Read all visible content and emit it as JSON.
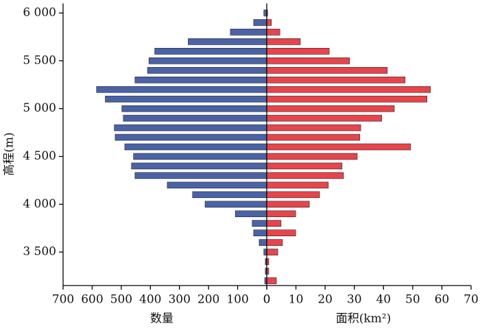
{
  "chart_data": {
    "type": "butterfly",
    "ylabel": "高程(m)",
    "y": [
      6000,
      5900,
      5800,
      5700,
      5600,
      5500,
      5400,
      5300,
      5200,
      5100,
      5000,
      4900,
      4800,
      4700,
      4600,
      4500,
      4400,
      4300,
      4200,
      4100,
      4000,
      3900,
      3800,
      3700,
      3600,
      3500,
      3400,
      3300,
      3200
    ],
    "ylim": [
      3150,
      6100
    ],
    "yticks": [
      {
        "value": 3500,
        "label": "3 500"
      },
      {
        "value": 4000,
        "label": "4 000"
      },
      {
        "value": 4500,
        "label": "4 500"
      },
      {
        "value": 5000,
        "label": "5 000"
      },
      {
        "value": 5500,
        "label": "5 500"
      },
      {
        "value": 6000,
        "label": "6 000"
      }
    ],
    "series": [
      {
        "name": "数量",
        "color": "#4a62a6",
        "values": [
          10,
          45,
          125,
          270,
          385,
          405,
          410,
          453,
          585,
          555,
          498,
          493,
          524,
          521,
          488,
          458,
          465,
          453,
          342,
          255,
          212,
          108,
          50,
          45,
          26,
          10,
          5,
          5,
          7
        ],
        "xlim": [
          0,
          700
        ],
        "xticks": [
          0,
          100,
          200,
          300,
          400,
          500,
          600,
          700
        ]
      },
      {
        "name": "面积(km²)",
        "color": "#e8444b",
        "values": [
          0.3,
          1.6,
          4.5,
          11.5,
          21.4,
          28.4,
          41.3,
          47.4,
          56.1,
          54.9,
          43.7,
          39.4,
          32.2,
          31.9,
          49.3,
          31,
          25.8,
          26.3,
          21.1,
          18.1,
          14.6,
          9.9,
          4.9,
          9.9,
          5.4,
          3.8,
          0.7,
          0.7,
          3.3
        ],
        "xlim": [
          0,
          70
        ],
        "xticks": [
          0,
          10,
          20,
          30,
          40,
          50,
          60,
          70
        ]
      }
    ]
  }
}
